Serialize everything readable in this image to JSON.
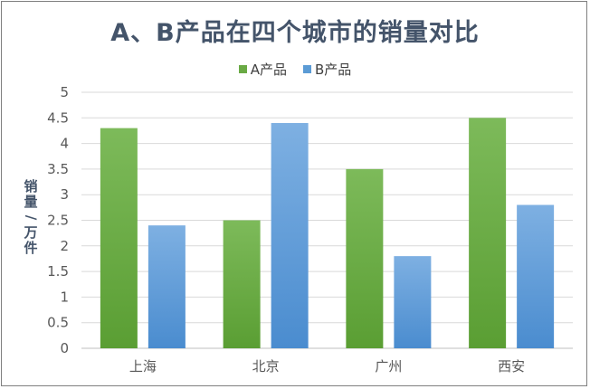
{
  "chart_data": {
    "type": "bar",
    "title": "A、B产品在四个城市的销量对比",
    "ylabel": "销量/万件",
    "xlabel": "",
    "categories": [
      "上海",
      "北京",
      "广州",
      "西安"
    ],
    "series": [
      {
        "name": "A产品",
        "values": [
          4.3,
          2.5,
          3.5,
          4.5
        ],
        "color_top": "#7dba5a",
        "color_bottom": "#5a9e33"
      },
      {
        "name": "B产品",
        "values": [
          2.4,
          4.4,
          1.8,
          2.8
        ],
        "color_top": "#7eb0e2",
        "color_bottom": "#4a8ccf"
      }
    ],
    "ylim": [
      0,
      5
    ],
    "yticks": [
      "0",
      "0.5",
      "1",
      "1.5",
      "2",
      "2.5",
      "3",
      "3.5",
      "4",
      "4.5",
      "5"
    ],
    "grid": true,
    "legend_position": "top-center"
  }
}
